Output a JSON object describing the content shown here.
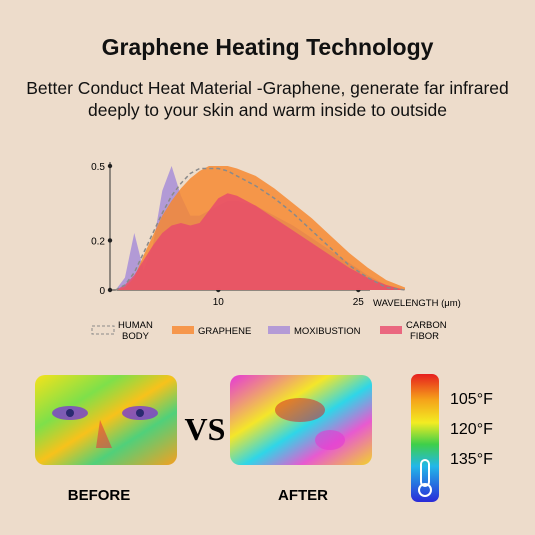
{
  "chart_data": {
    "type": "area",
    "title": "Graphene Heating Technology",
    "subtitle": "Better Conduct Heat Material -Graphene, generate far infrared deeply to your skin and warm inside to outside",
    "x_label": "WAVELENGTH (μm)",
    "x": [
      -1,
      0,
      1,
      2,
      3,
      4,
      5,
      6,
      7,
      8,
      9,
      10,
      11,
      12,
      14,
      16,
      18,
      20,
      22,
      24,
      26,
      28,
      30
    ],
    "xlim": [
      -1.6,
      30
    ],
    "xticks": [
      10,
      25
    ],
    "ylim": [
      0,
      0.5
    ],
    "yticks": [
      0,
      0.2,
      0.5
    ],
    "series": [
      {
        "name": "MOXIBUSTION",
        "color": "#a58bd8",
        "values": [
          0,
          0.05,
          0.23,
          0.08,
          0.18,
          0.4,
          0.5,
          0.38,
          0.3,
          0.3,
          0.32,
          0.34,
          0.36,
          0.36,
          0.34,
          0.3,
          0.26,
          0.21,
          0.16,
          0.11,
          0.06,
          0.02,
          0
        ]
      },
      {
        "name": "GRAPHENE",
        "color": "#f7862c",
        "values": [
          0,
          0.01,
          0.05,
          0.14,
          0.22,
          0.3,
          0.36,
          0.41,
          0.45,
          0.48,
          0.5,
          0.5,
          0.5,
          0.49,
          0.46,
          0.41,
          0.35,
          0.29,
          0.22,
          0.15,
          0.09,
          0.04,
          0.01
        ]
      },
      {
        "name": "CARBON FIBOR",
        "color": "#e84a6b",
        "values": [
          0,
          0.02,
          0.06,
          0.12,
          0.18,
          0.23,
          0.26,
          0.27,
          0.26,
          0.27,
          0.32,
          0.37,
          0.39,
          0.38,
          0.34,
          0.29,
          0.24,
          0.19,
          0.14,
          0.09,
          0.05,
          0.02,
          0
        ]
      },
      {
        "name": "HUMAN BODY",
        "color": "#8a8a8a",
        "dashed": true,
        "values": [
          0,
          0.02,
          0.07,
          0.15,
          0.23,
          0.31,
          0.38,
          0.43,
          0.47,
          0.49,
          0.49,
          0.49,
          0.48,
          0.46,
          0.42,
          0.37,
          0.31,
          0.24,
          0.17,
          0.1,
          0.05,
          0.01,
          0
        ]
      }
    ]
  },
  "comparison": {
    "before": "BEFORE",
    "vs": "VS",
    "after": "AFTER",
    "scale_labels": [
      "105°F",
      "120°F",
      "135°F"
    ]
  }
}
